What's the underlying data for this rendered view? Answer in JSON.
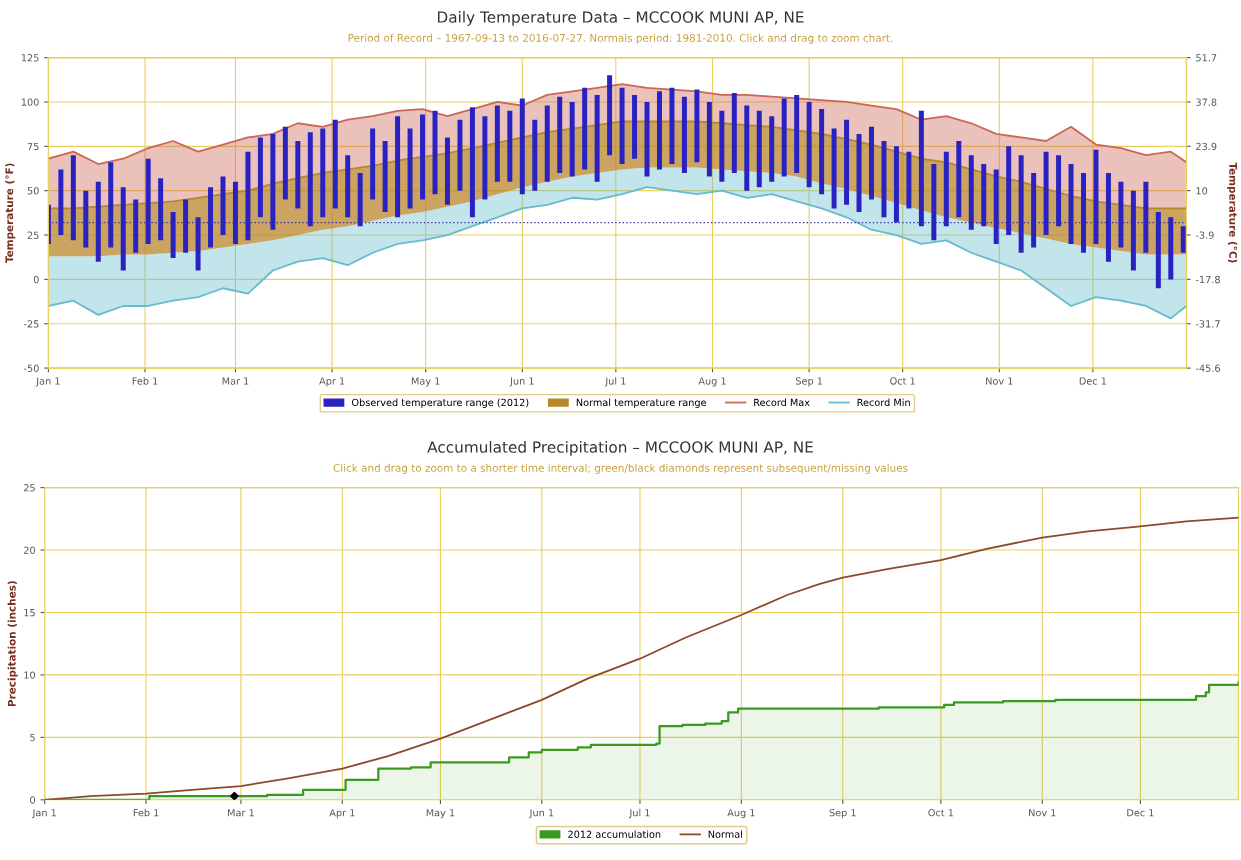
{
  "chart_data": [
    {
      "type": "bar",
      "title": "Daily Temperature Data – MCCOOK MUNI AP, NE",
      "subtitle": "Period of Record – 1967-09-13 to 2016-07-27. Normals period: 1981-2010. Click and drag to zoom chart.",
      "ylabel": "Temperature (°F)",
      "y2label": "Temperature (°C)",
      "x": [
        "2012-01-01",
        "2012-01-05",
        "2012-01-09",
        "2012-01-13",
        "2012-01-17",
        "2012-01-21",
        "2012-01-25",
        "2012-01-29",
        "2012-02-02",
        "2012-02-06",
        "2012-02-10",
        "2012-02-14",
        "2012-02-18",
        "2012-02-22",
        "2012-02-26",
        "2012-03-01",
        "2012-03-05",
        "2012-03-09",
        "2012-03-13",
        "2012-03-17",
        "2012-03-21",
        "2012-03-25",
        "2012-03-29",
        "2012-04-02",
        "2012-04-06",
        "2012-04-10",
        "2012-04-14",
        "2012-04-18",
        "2012-04-22",
        "2012-04-26",
        "2012-04-30",
        "2012-05-04",
        "2012-05-08",
        "2012-05-12",
        "2012-05-16",
        "2012-05-20",
        "2012-05-24",
        "2012-05-28",
        "2012-06-01",
        "2012-06-05",
        "2012-06-09",
        "2012-06-13",
        "2012-06-17",
        "2012-06-21",
        "2012-06-25",
        "2012-06-29",
        "2012-07-03",
        "2012-07-07",
        "2012-07-11",
        "2012-07-15",
        "2012-07-19",
        "2012-07-23",
        "2012-07-27",
        "2012-07-31",
        "2012-08-04",
        "2012-08-08",
        "2012-08-12",
        "2012-08-16",
        "2012-08-20",
        "2012-08-24",
        "2012-08-28",
        "2012-09-01",
        "2012-09-05",
        "2012-09-09",
        "2012-09-13",
        "2012-09-17",
        "2012-09-21",
        "2012-09-25",
        "2012-09-29",
        "2012-10-03",
        "2012-10-07",
        "2012-10-11",
        "2012-10-15",
        "2012-10-19",
        "2012-10-23",
        "2012-10-27",
        "2012-10-31",
        "2012-11-04",
        "2012-11-08",
        "2012-11-12",
        "2012-11-16",
        "2012-11-20",
        "2012-11-24",
        "2012-11-28",
        "2012-12-02",
        "2012-12-06",
        "2012-12-10",
        "2012-12-14",
        "2012-12-18",
        "2012-12-22",
        "2012-12-26",
        "2012-12-30"
      ],
      "series": [
        {
          "name": "Observed temperature range (2012)",
          "color": "#2a22c0",
          "base": [
            20,
            25,
            22,
            18,
            10,
            18,
            5,
            15,
            20,
            22,
            12,
            15,
            5,
            18,
            25,
            20,
            22,
            35,
            28,
            45,
            40,
            30,
            35,
            40,
            35,
            30,
            45,
            38,
            35,
            40,
            45,
            48,
            42,
            50,
            35,
            45,
            55,
            55,
            48,
            50,
            55,
            60,
            58,
            62,
            55,
            70,
            65,
            68,
            58,
            62,
            65,
            60,
            66,
            58,
            55,
            60,
            50,
            52,
            55,
            58,
            60,
            52,
            48,
            40,
            42,
            38,
            45,
            35,
            32,
            40,
            30,
            22,
            30,
            35,
            28,
            30,
            20,
            25,
            15,
            18,
            25,
            30,
            20,
            15,
            20,
            10,
            18,
            5,
            15,
            -5,
            0,
            15
          ],
          "values": [
            22,
            37,
            48,
            32,
            45,
            48,
            47,
            30,
            48,
            35,
            26,
            30,
            30,
            34,
            33,
            35,
            50,
            45,
            54,
            41,
            38,
            53,
            50,
            50,
            35,
            30,
            40,
            40,
            57,
            45,
            48,
            47,
            38,
            40,
            62,
            47,
            43,
            40,
            54,
            40,
            43,
            43,
            42,
            46,
            49,
            45,
            43,
            36,
            42,
            44,
            43,
            43,
            41,
            42,
            40,
            45,
            48,
            43,
            37,
            44,
            44,
            48,
            48,
            45,
            48,
            44,
            41,
            43,
            43,
            32,
            65,
            43,
            42,
            43,
            42,
            35,
            42,
            50,
            55,
            42,
            47,
            40,
            45,
            45,
            53,
            50,
            37,
            45,
            40,
            43,
            35,
            15
          ]
        },
        {
          "name": "Normal temperature range",
          "type": "area",
          "color": "#b8862b",
          "x": [
            "2012-01-01",
            "2012-01-09",
            "2012-01-17",
            "2012-01-25",
            "2012-02-02",
            "2012-02-10",
            "2012-02-18",
            "2012-02-26",
            "2012-03-05",
            "2012-03-13",
            "2012-03-21",
            "2012-03-29",
            "2012-04-06",
            "2012-04-14",
            "2012-04-22",
            "2012-04-30",
            "2012-05-08",
            "2012-05-16",
            "2012-05-24",
            "2012-06-01",
            "2012-06-09",
            "2012-06-17",
            "2012-06-25",
            "2012-07-03",
            "2012-07-11",
            "2012-07-19",
            "2012-07-27",
            "2012-08-04",
            "2012-08-12",
            "2012-08-20",
            "2012-08-28",
            "2012-09-05",
            "2012-09-13",
            "2012-09-21",
            "2012-09-29",
            "2012-10-07",
            "2012-10-15",
            "2012-10-23",
            "2012-10-31",
            "2012-11-08",
            "2012-11-16",
            "2012-11-24",
            "2012-12-02",
            "2012-12-10",
            "2012-12-18",
            "2012-12-26",
            "2012-12-31"
          ],
          "values": [
            40,
            40,
            41,
            42,
            43,
            44,
            46,
            48,
            50,
            54,
            57,
            60,
            62,
            64,
            67,
            69,
            71,
            74,
            77,
            80,
            83,
            85,
            87,
            89,
            89,
            89,
            89,
            88,
            87,
            86,
            84,
            82,
            79,
            76,
            72,
            68,
            66,
            62,
            58,
            55,
            51,
            47,
            44,
            42,
            40,
            40,
            40
          ]
        },
        {
          "name": "Record Max",
          "type": "line",
          "color": "#cc6655",
          "lower": [
            40,
            40,
            41,
            42,
            43,
            44,
            46,
            48,
            50,
            54,
            57,
            60,
            62,
            64,
            67,
            69,
            71,
            74,
            77,
            80,
            83,
            85,
            87,
            89,
            89,
            89,
            89,
            88,
            87,
            86,
            84,
            82,
            79,
            76,
            72,
            68,
            66,
            62,
            58,
            55,
            51,
            47,
            44,
            42,
            40,
            40,
            40
          ],
          "upper": [
            68,
            72,
            65,
            68,
            74,
            78,
            72,
            76,
            80,
            82,
            88,
            86,
            90,
            92,
            95,
            96,
            92,
            96,
            100,
            98,
            104,
            106,
            108,
            110,
            108,
            107,
            106,
            104,
            104,
            103,
            102,
            101,
            100,
            98,
            96,
            90,
            92,
            88,
            82,
            80,
            78,
            86,
            76,
            74,
            70,
            72,
            66
          ],
          "x": [
            "2012-01-01",
            "2012-01-09",
            "2012-01-17",
            "2012-01-25",
            "2012-02-02",
            "2012-02-10",
            "2012-02-18",
            "2012-02-26",
            "2012-03-05",
            "2012-03-13",
            "2012-03-21",
            "2012-03-29",
            "2012-04-06",
            "2012-04-14",
            "2012-04-22",
            "2012-04-30",
            "2012-05-08",
            "2012-05-16",
            "2012-05-24",
            "2012-06-01",
            "2012-06-09",
            "2012-06-17",
            "2012-06-25",
            "2012-07-03",
            "2012-07-11",
            "2012-07-19",
            "2012-07-27",
            "2012-08-04",
            "2012-08-12",
            "2012-08-20",
            "2012-08-28",
            "2012-09-05",
            "2012-09-13",
            "2012-09-21",
            "2012-09-29",
            "2012-10-07",
            "2012-10-15",
            "2012-10-23",
            "2012-10-31",
            "2012-11-08",
            "2012-11-16",
            "2012-11-24",
            "2012-12-02",
            "2012-12-10",
            "2012-12-18",
            "2012-12-26",
            "2012-12-31"
          ],
          "values": [
            68,
            72,
            65,
            68,
            74,
            78,
            72,
            76,
            80,
            82,
            88,
            86,
            90,
            92,
            95,
            96,
            92,
            96,
            100,
            98,
            104,
            106,
            108,
            110,
            108,
            107,
            106,
            104,
            104,
            103,
            102,
            101,
            100,
            98,
            96,
            90,
            92,
            88,
            82,
            80,
            78,
            86,
            76,
            74,
            70,
            72,
            66
          ]
        },
        {
          "name": "Record Min",
          "type": "line",
          "color": "#66bbcc",
          "upper": [
            13,
            13,
            13,
            14,
            14,
            15,
            16,
            18,
            20,
            22,
            25,
            28,
            30,
            33,
            36,
            38,
            41,
            44,
            48,
            52,
            55,
            58,
            60,
            62,
            63,
            63,
            63,
            62,
            61,
            60,
            58,
            54,
            51,
            47,
            43,
            39,
            35,
            32,
            29,
            26,
            23,
            20,
            18,
            16,
            14,
            14,
            14
          ],
          "lower": [
            -15,
            -12,
            -20,
            -15,
            -15,
            -12,
            -10,
            -5,
            -8,
            5,
            10,
            12,
            8,
            15,
            20,
            22,
            25,
            30,
            35,
            40,
            42,
            46,
            45,
            48,
            52,
            50,
            48,
            50,
            46,
            48,
            44,
            40,
            35,
            28,
            25,
            20,
            22,
            15,
            10,
            5,
            -5,
            -15,
            -10,
            -12,
            -15,
            -22,
            -15
          ],
          "x": [
            "2012-01-01",
            "2012-01-09",
            "2012-01-17",
            "2012-01-25",
            "2012-02-02",
            "2012-02-10",
            "2012-02-18",
            "2012-02-26",
            "2012-03-05",
            "2012-03-13",
            "2012-03-21",
            "2012-03-29",
            "2012-04-06",
            "2012-04-14",
            "2012-04-22",
            "2012-04-30",
            "2012-05-08",
            "2012-05-16",
            "2012-05-24",
            "2012-06-01",
            "2012-06-09",
            "2012-06-17",
            "2012-06-25",
            "2012-07-03",
            "2012-07-11",
            "2012-07-19",
            "2012-07-27",
            "2012-08-04",
            "2012-08-12",
            "2012-08-20",
            "2012-08-28",
            "2012-09-05",
            "2012-09-13",
            "2012-09-21",
            "2012-09-29",
            "2012-10-07",
            "2012-10-15",
            "2012-10-23",
            "2012-10-31",
            "2012-11-08",
            "2012-11-16",
            "2012-11-24",
            "2012-12-02",
            "2012-12-10",
            "2012-12-18",
            "2012-12-26",
            "2012-12-31"
          ],
          "values": [
            -15,
            -12,
            -20,
            -15,
            -15,
            -12,
            -10,
            -5,
            -8,
            5,
            10,
            12,
            8,
            15,
            20,
            22,
            25,
            30,
            35,
            40,
            42,
            46,
            45,
            48,
            52,
            50,
            48,
            50,
            46,
            48,
            44,
            40,
            35,
            28,
            25,
            20,
            22,
            15,
            10,
            5,
            -5,
            -15,
            -10,
            -12,
            -15,
            -22,
            -15
          ]
        }
      ],
      "xlim": [
        "2012-01-01",
        "2012-12-31"
      ],
      "xticks": [
        {
          "value": "2012-01-01",
          "label": "Jan 1"
        },
        {
          "value": "2012-02-01",
          "label": "Feb 1"
        },
        {
          "value": "2012-03-01",
          "label": "Mar 1"
        },
        {
          "value": "2012-04-01",
          "label": "Apr 1"
        },
        {
          "value": "2012-05-01",
          "label": "May 1"
        },
        {
          "value": "2012-06-01",
          "label": "Jun 1"
        },
        {
          "value": "2012-07-01",
          "label": "Jul 1"
        },
        {
          "value": "2012-08-01",
          "label": "Aug 1"
        },
        {
          "value": "2012-09-01",
          "label": "Sep 1"
        },
        {
          "value": "2012-10-01",
          "label": "Oct 1"
        },
        {
          "value": "2012-11-01",
          "label": "Nov 1"
        },
        {
          "value": "2012-12-01",
          "label": "Dec 1"
        }
      ],
      "ylim": [
        -50,
        125
      ],
      "yticks": [
        -50,
        -25,
        0,
        25,
        50,
        75,
        100,
        125
      ],
      "y2lim": [
        -45.6,
        51.7
      ],
      "y2ticks": [
        -45.6,
        -31.7,
        -17.8,
        -3.9,
        10,
        23.9,
        37.8,
        51.7
      ],
      "ref_lines": [
        {
          "axis": "y",
          "value": 32,
          "color": "#3030a0",
          "line_style": "dotted"
        }
      ],
      "grid": true,
      "legend": "bottom"
    },
    {
      "type": "step",
      "title": "Accumulated Precipitation – MCCOOK MUNI AP, NE",
      "subtitle": "Click and drag to zoom to a shorter time interval; green/black diamonds represent subsequent/missing values",
      "ylabel": "Precipitation (inches)",
      "series": [
        {
          "name": "2012 accumulation",
          "color": "#3a9a20",
          "x": [
            "2012-01-01",
            "2012-02-02",
            "2012-03-09",
            "2012-03-20",
            "2012-04-02",
            "2012-04-12",
            "2012-04-22",
            "2012-04-28",
            "2012-05-22",
            "2012-05-28",
            "2012-06-01",
            "2012-06-12",
            "2012-06-16",
            "2012-07-06",
            "2012-07-07",
            "2012-07-14",
            "2012-07-21",
            "2012-07-26",
            "2012-07-28",
            "2012-07-31",
            "2012-09-12",
            "2012-10-02",
            "2012-10-05",
            "2012-10-20",
            "2012-11-05",
            "2012-12-18",
            "2012-12-21",
            "2012-12-22",
            "2012-12-31"
          ],
          "values": [
            0,
            0.3,
            0.4,
            0.8,
            1.6,
            2.5,
            2.6,
            3.0,
            3.4,
            3.8,
            4.0,
            4.2,
            4.4,
            4.5,
            5.9,
            6.0,
            6.1,
            6.3,
            7.0,
            7.3,
            7.4,
            7.6,
            7.8,
            7.9,
            8.0,
            8.3,
            8.6,
            9.2,
            9.4
          ]
        },
        {
          "name": "Normal",
          "type": "line",
          "color": "#8b4a2b",
          "x": [
            "2012-01-01",
            "2012-01-15",
            "2012-02-01",
            "2012-02-15",
            "2012-03-01",
            "2012-03-15",
            "2012-04-01",
            "2012-04-15",
            "2012-05-01",
            "2012-05-15",
            "2012-06-01",
            "2012-06-15",
            "2012-07-01",
            "2012-07-15",
            "2012-08-01",
            "2012-08-15",
            "2012-08-25",
            "2012-09-01",
            "2012-09-15",
            "2012-10-01",
            "2012-10-15",
            "2012-11-01",
            "2012-11-15",
            "2012-12-01",
            "2012-12-15",
            "2012-12-31"
          ],
          "values": [
            0,
            0.3,
            0.5,
            0.8,
            1.1,
            1.7,
            2.5,
            3.5,
            4.9,
            6.3,
            8.0,
            9.7,
            11.3,
            13.0,
            14.8,
            16.4,
            17.3,
            17.8,
            18.5,
            19.2,
            20.1,
            21.0,
            21.5,
            21.9,
            22.3,
            22.6
          ]
        },
        {
          "type": "scatter",
          "color": "#000000",
          "marker": "diamond",
          "x": [
            "2012-02-28"
          ],
          "values": [
            0.3
          ]
        }
      ],
      "xlim": [
        "2012-01-01",
        "2012-12-31"
      ],
      "xticks": [
        {
          "value": "2012-01-01",
          "label": "Jan 1"
        },
        {
          "value": "2012-02-01",
          "label": "Feb 1"
        },
        {
          "value": "2012-03-01",
          "label": "Mar 1"
        },
        {
          "value": "2012-04-01",
          "label": "Apr 1"
        },
        {
          "value": "2012-05-01",
          "label": "May 1"
        },
        {
          "value": "2012-06-01",
          "label": "Jun 1"
        },
        {
          "value": "2012-07-01",
          "label": "Jul 1"
        },
        {
          "value": "2012-08-01",
          "label": "Aug 1"
        },
        {
          "value": "2012-09-01",
          "label": "Sep 1"
        },
        {
          "value": "2012-10-01",
          "label": "Oct 1"
        },
        {
          "value": "2012-11-01",
          "label": "Nov 1"
        },
        {
          "value": "2012-12-01",
          "label": "Dec 1"
        }
      ],
      "ylim": [
        0,
        25
      ],
      "yticks": [
        0,
        5,
        10,
        15,
        20,
        25
      ],
      "grid": true,
      "legend": "bottom"
    }
  ]
}
